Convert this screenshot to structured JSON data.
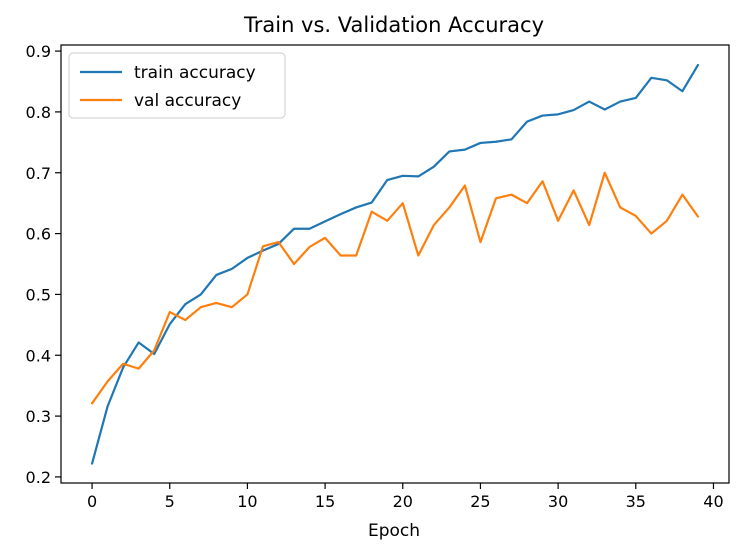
{
  "chart_data": {
    "type": "line",
    "title": "Train vs. Validation Accuracy",
    "xlabel": "Epoch",
    "ylabel": "",
    "xlim": [
      -2,
      41
    ],
    "ylim": [
      0.19,
      0.91
    ],
    "xticks": [
      0,
      5,
      10,
      15,
      20,
      25,
      30,
      35,
      40
    ],
    "yticks": [
      0.2,
      0.3,
      0.4,
      0.5,
      0.6,
      0.7,
      0.8,
      0.9
    ],
    "xtick_labels": [
      "0",
      "5",
      "10",
      "15",
      "20",
      "25",
      "30",
      "35",
      "40"
    ],
    "ytick_labels": [
      "0.2",
      "0.3",
      "0.4",
      "0.5",
      "0.6",
      "0.7",
      "0.8",
      "0.9"
    ],
    "grid": false,
    "legend_position": "upper-left",
    "x": [
      0,
      1,
      2,
      3,
      4,
      5,
      6,
      7,
      8,
      9,
      10,
      11,
      12,
      13,
      14,
      15,
      16,
      17,
      18,
      19,
      20,
      21,
      22,
      23,
      24,
      25,
      26,
      27,
      28,
      29,
      30,
      31,
      32,
      33,
      34,
      35,
      36,
      37,
      38,
      39
    ],
    "series": [
      {
        "name": "train accuracy",
        "color": "#1f77b4",
        "values": [
          0.222,
          0.316,
          0.38,
          0.421,
          0.402,
          0.451,
          0.484,
          0.5,
          0.532,
          0.542,
          0.56,
          0.572,
          0.583,
          0.608,
          0.608,
          0.62,
          0.632,
          0.643,
          0.651,
          0.688,
          0.695,
          0.694,
          0.71,
          0.735,
          0.738,
          0.749,
          0.751,
          0.755,
          0.784,
          0.794,
          0.796,
          0.803,
          0.817,
          0.804,
          0.817,
          0.823,
          0.856,
          0.852,
          0.834,
          0.877
        ]
      },
      {
        "name": "val accuracy",
        "color": "#ff7f0e",
        "values": [
          0.321,
          0.357,
          0.386,
          0.378,
          0.408,
          0.471,
          0.458,
          0.479,
          0.486,
          0.479,
          0.5,
          0.579,
          0.586,
          0.55,
          0.578,
          0.593,
          0.564,
          0.564,
          0.636,
          0.621,
          0.65,
          0.564,
          0.614,
          0.643,
          0.679,
          0.586,
          0.658,
          0.664,
          0.65,
          0.686,
          0.621,
          0.671,
          0.614,
          0.7,
          0.643,
          0.629,
          0.6,
          0.621,
          0.664,
          0.628
        ]
      }
    ]
  }
}
